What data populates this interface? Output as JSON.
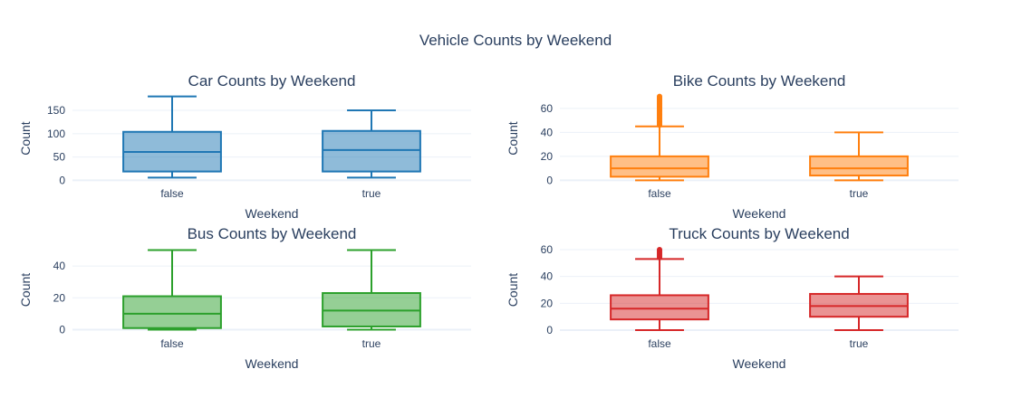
{
  "title": "Vehicle Counts by Weekend",
  "colors": {
    "car": "#1f77b4",
    "bike": "#ff7f0e",
    "bus": "#2ca02c",
    "truck": "#d62728",
    "grid": "#ebf0f8",
    "text": "#2a3f5f"
  },
  "chart_data": [
    {
      "type": "box",
      "title": "Car Counts by Weekend",
      "xlabel": "Weekend",
      "ylabel": "Count",
      "color": "#1f77b4",
      "categories": [
        "false",
        "true"
      ],
      "ylim": [
        -5,
        185
      ],
      "yticks": [
        0,
        50,
        100,
        150
      ],
      "boxes": [
        {
          "category": "false",
          "min": 6,
          "q1": 19,
          "median": 61,
          "q3": 104,
          "max": 180,
          "outliers": []
        },
        {
          "category": "true",
          "min": 6,
          "q1": 19,
          "median": 65,
          "q3": 106,
          "max": 150,
          "outliers": []
        }
      ]
    },
    {
      "type": "box",
      "title": "Bike Counts by Weekend",
      "xlabel": "Weekend",
      "ylabel": "Count",
      "color": "#ff7f0e",
      "categories": [
        "false",
        "true"
      ],
      "ylim": [
        -2,
        72
      ],
      "yticks": [
        0,
        20,
        40,
        60
      ],
      "boxes": [
        {
          "category": "false",
          "min": 0,
          "q1": 3,
          "median": 10,
          "q3": 20,
          "max": 45,
          "outliers": [
            46,
            47,
            48,
            49,
            50,
            51,
            52,
            53,
            54,
            55,
            56,
            57,
            58,
            59,
            60,
            61,
            62,
            63,
            64,
            65,
            66,
            67,
            68,
            69,
            70
          ]
        },
        {
          "category": "true",
          "min": 0,
          "q1": 4,
          "median": 10,
          "q3": 20,
          "max": 40,
          "outliers": []
        }
      ]
    },
    {
      "type": "box",
      "title": "Bus Counts by Weekend",
      "xlabel": "Weekend",
      "ylabel": "Count",
      "color": "#2ca02c",
      "categories": [
        "false",
        "true"
      ],
      "ylim": [
        -2,
        52
      ],
      "yticks": [
        0,
        20,
        40
      ],
      "boxes": [
        {
          "category": "false",
          "min": 0,
          "q1": 1,
          "median": 10,
          "q3": 21,
          "max": 50,
          "outliers": []
        },
        {
          "category": "true",
          "min": 0,
          "q1": 2,
          "median": 12,
          "q3": 23,
          "max": 50,
          "outliers": []
        }
      ]
    },
    {
      "type": "box",
      "title": "Truck Counts by Weekend",
      "xlabel": "Weekend",
      "ylabel": "Count",
      "color": "#d62728",
      "categories": [
        "false",
        "true"
      ],
      "ylim": [
        -2,
        62
      ],
      "yticks": [
        0,
        20,
        40,
        60
      ],
      "boxes": [
        {
          "category": "false",
          "min": 0,
          "q1": 8,
          "median": 16,
          "q3": 26,
          "max": 53,
          "outliers": [
            54,
            55,
            56,
            57,
            58,
            59,
            60
          ]
        },
        {
          "category": "true",
          "min": 0,
          "q1": 10,
          "median": 18,
          "q3": 27,
          "max": 40,
          "outliers": []
        }
      ]
    }
  ]
}
